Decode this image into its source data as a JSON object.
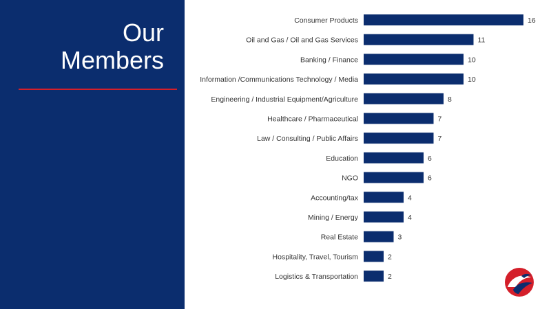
{
  "title": {
    "line1": "Our",
    "line2": "Members"
  },
  "colors": {
    "panel": "#0b2d6e",
    "bar": "#0b2d6e",
    "accent_rule": "#d41f2a"
  },
  "logo": {
    "icon": "eagle-logo-icon"
  },
  "chart_data": {
    "type": "bar",
    "orientation": "horizontal",
    "categories": [
      "Consumer Products",
      "Oil and Gas / Oil and Gas Services",
      "Banking / Finance",
      "Information /Communications Technology / Media",
      "Engineering / Industrial Equipment/Agriculture",
      "Healthcare / Pharmaceutical",
      "Law / Consulting / Public Affairs",
      "Education",
      "NGO",
      "Accounting/tax",
      "Mining / Energy",
      "Real Estate",
      "Hospitality, Travel, Tourism",
      "Logistics & Transportation"
    ],
    "values": [
      16,
      11,
      10,
      10,
      8,
      7,
      7,
      6,
      6,
      4,
      4,
      3,
      2,
      2
    ],
    "xlim": [
      0,
      16
    ],
    "grid": false,
    "legend": "none",
    "data_labels": true
  }
}
